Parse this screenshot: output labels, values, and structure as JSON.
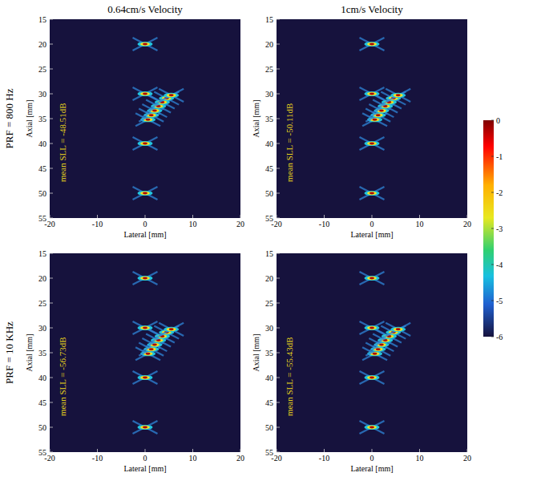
{
  "chart_data": [
    {
      "type": "scatter",
      "marker": "psf",
      "title": "0.64cm/s Velocity",
      "row_label": "PRF = 800 Hz",
      "xlabel": "Lateral [mm]",
      "ylabel": "Axial [mm]",
      "annotation": "mean SLL = -48.51dB",
      "xlim": [
        -20,
        20
      ],
      "ylim": [
        55,
        15
      ],
      "xticks": [
        -20,
        -10,
        0,
        10,
        20
      ],
      "yticks": [
        15,
        20,
        25,
        30,
        35,
        40,
        45,
        50,
        55
      ],
      "x": [
        0,
        0,
        0,
        0,
        0.6,
        1.3,
        2.0,
        2.8,
        3.6,
        4.5,
        5.5
      ],
      "y": [
        20,
        30,
        40,
        50,
        35.2,
        34.3,
        33.4,
        32.5,
        31.7,
        30.9,
        30.3
      ]
    },
    {
      "type": "scatter",
      "marker": "psf",
      "title": "1cm/s Velocity",
      "xlabel": "Lateral [mm]",
      "ylabel": "Axial [mm]",
      "annotation": "mean SLL = -50.11dB",
      "xlim": [
        -20,
        20
      ],
      "ylim": [
        55,
        15
      ],
      "xticks": [
        -20,
        -10,
        0,
        10,
        20
      ],
      "yticks": [
        15,
        20,
        25,
        30,
        35,
        40,
        45,
        50,
        55
      ],
      "x": [
        0,
        0,
        0,
        0,
        0.6,
        1.3,
        2.0,
        2.8,
        3.6,
        4.5,
        5.5
      ],
      "y": [
        20,
        30,
        40,
        50,
        35.2,
        34.3,
        33.4,
        32.5,
        31.7,
        30.9,
        30.3
      ],
      "colorbar_range": [
        -6,
        0
      ],
      "colorbar_ticks": [
        0,
        -1,
        -2,
        -3,
        -4,
        -5,
        -6
      ]
    },
    {
      "type": "scatter",
      "marker": "psf",
      "row_label": "PRF = 10 KHz",
      "xlabel": "Lateral [mm]",
      "ylabel": "Axial [mm]",
      "annotation": "mean SLL = -56.73dB",
      "xlim": [
        -20,
        20
      ],
      "ylim": [
        55,
        15
      ],
      "xticks": [
        -20,
        -10,
        0,
        10,
        20
      ],
      "yticks": [
        15,
        20,
        25,
        30,
        35,
        40,
        45,
        50,
        55
      ],
      "x": [
        0,
        0,
        0,
        0,
        0.6,
        1.3,
        2.0,
        2.8,
        3.6,
        4.5,
        5.5
      ],
      "y": [
        20,
        30,
        40,
        50,
        35.2,
        34.3,
        33.4,
        32.5,
        31.7,
        30.9,
        30.3
      ]
    },
    {
      "type": "scatter",
      "marker": "psf",
      "xlabel": "Lateral [mm]",
      "ylabel": "Axial [mm]",
      "annotation": "mean SLL = -55.43dB",
      "xlim": [
        -20,
        20
      ],
      "ylim": [
        55,
        15
      ],
      "xticks": [
        -20,
        -10,
        0,
        10,
        20
      ],
      "yticks": [
        15,
        20,
        25,
        30,
        35,
        40,
        45,
        50,
        55
      ],
      "x": [
        0,
        0,
        0,
        0,
        0.6,
        1.3,
        2.0,
        2.8,
        3.6,
        4.5,
        5.5
      ],
      "y": [
        20,
        30,
        40,
        50,
        35.2,
        34.3,
        33.4,
        32.5,
        31.7,
        30.9,
        30.3
      ]
    }
  ]
}
